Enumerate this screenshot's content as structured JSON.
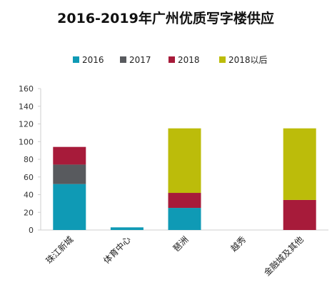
{
  "chart_data": {
    "type": "bar",
    "stacked": true,
    "title": "2016-2019年广州优质写字楼供应",
    "xlabel": "",
    "ylabel": "",
    "ylim": [
      0,
      160
    ],
    "yticks": [
      0,
      20,
      40,
      60,
      80,
      100,
      120,
      140,
      160
    ],
    "grid": false,
    "legend_position": "top",
    "categories": [
      "珠江新城",
      "体育中心",
      "琶洲",
      "越秀",
      "金融城及其他"
    ],
    "series": [
      {
        "name": "2016",
        "color": "#0f9ab5",
        "values": [
          52,
          3,
          25,
          0,
          0
        ]
      },
      {
        "name": "2017",
        "color": "#585a5e",
        "values": [
          22,
          0,
          0,
          0,
          0
        ]
      },
      {
        "name": "2018",
        "color": "#a71b3a",
        "values": [
          20,
          0,
          17,
          0,
          34
        ]
      },
      {
        "name": "2018以后",
        "color": "#bcbc0a",
        "values": [
          0,
          0,
          73,
          0,
          81
        ]
      }
    ]
  }
}
